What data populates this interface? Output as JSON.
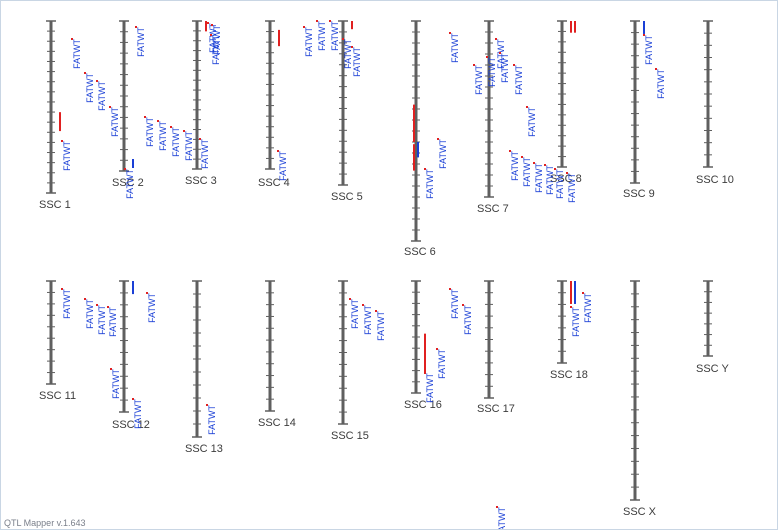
{
  "app": {
    "version_text": "QTL Mapper v.1.643"
  },
  "colors": {
    "chromosome": "#5f5f5f",
    "tick": "#5f5f5f",
    "qtl_label": "#1a3fd6",
    "qtl_bar_red": "#e02020",
    "qtl_bar_blue": "#1a3fd6",
    "label": "#3c3c3c"
  },
  "trait": "FATWT",
  "chromosomes": [
    {
      "label": "SSC 1",
      "ticks": 17,
      "qtls": [
        {
          "from": 0.53,
          "to": 0.64,
          "color": "red"
        }
      ]
    },
    {
      "label": "SSC 2",
      "ticks": 14,
      "qtls": [
        {
          "from": 0.92,
          "to": 0.98,
          "color": "blue"
        }
      ]
    },
    {
      "label": "SSC 3",
      "ticks": 15,
      "qtls": [
        {
          "from": 0.0,
          "to": 0.07,
          "color": "red"
        }
      ]
    },
    {
      "label": "SSC 4",
      "ticks": 14,
      "qtls": [
        {
          "from": 0.06,
          "to": 0.17,
          "color": "red"
        }
      ]
    },
    {
      "label": "SSC 5",
      "ticks": 15,
      "qtls": [
        {
          "from": 0.0,
          "to": 0.05,
          "color": "red"
        }
      ]
    },
    {
      "label": "SSC 6",
      "ticks": 20,
      "qtls": [
        {
          "from": 0.38,
          "to": 0.55,
          "color": "red"
        },
        {
          "from": 0.55,
          "to": 0.62,
          "color": "blue"
        },
        {
          "from": 0.56,
          "to": 0.68,
          "color": "red"
        }
      ]
    },
    {
      "label": "SSC 7",
      "ticks": 16,
      "qtls": []
    },
    {
      "label": "SSC 8",
      "ticks": 14,
      "qtls": [
        {
          "from": 0.0,
          "to": 0.08,
          "color": "red"
        },
        {
          "from": 0.0,
          "to": 0.08,
          "color": "red"
        }
      ]
    },
    {
      "label": "SSC 9",
      "ticks": 14,
      "qtls": [
        {
          "from": 0.0,
          "to": 0.08,
          "color": "blue"
        }
      ]
    },
    {
      "label": "SSC 10",
      "ticks": 12,
      "qtls": []
    },
    {
      "label": "SSC 11",
      "ticks": 9,
      "qtls": []
    },
    {
      "label": "SSC 12",
      "ticks": 11,
      "qtls": [
        {
          "from": 0.0,
          "to": 0.1,
          "color": "blue"
        }
      ]
    },
    {
      "label": "SSC 13",
      "ticks": 12,
      "qtls": []
    },
    {
      "label": "SSC 14",
      "ticks": 11,
      "qtls": []
    },
    {
      "label": "SSC 15",
      "ticks": 12,
      "qtls": []
    },
    {
      "label": "SSC 16",
      "ticks": 10,
      "qtls": [
        {
          "from": 0.47,
          "to": 0.82,
          "color": "red"
        }
      ]
    },
    {
      "label": "SSC 17",
      "ticks": 10,
      "qtls": []
    },
    {
      "label": "SSC 18",
      "ticks": 7,
      "qtls": [
        {
          "from": 0.0,
          "to": 0.28,
          "color": "red"
        },
        {
          "from": 0.0,
          "to": 0.28,
          "color": "blue"
        }
      ]
    },
    {
      "label": "SSC X",
      "ticks": 17,
      "qtls": []
    },
    {
      "label": "SSC Y",
      "ticks": 7,
      "qtls": []
    }
  ]
}
